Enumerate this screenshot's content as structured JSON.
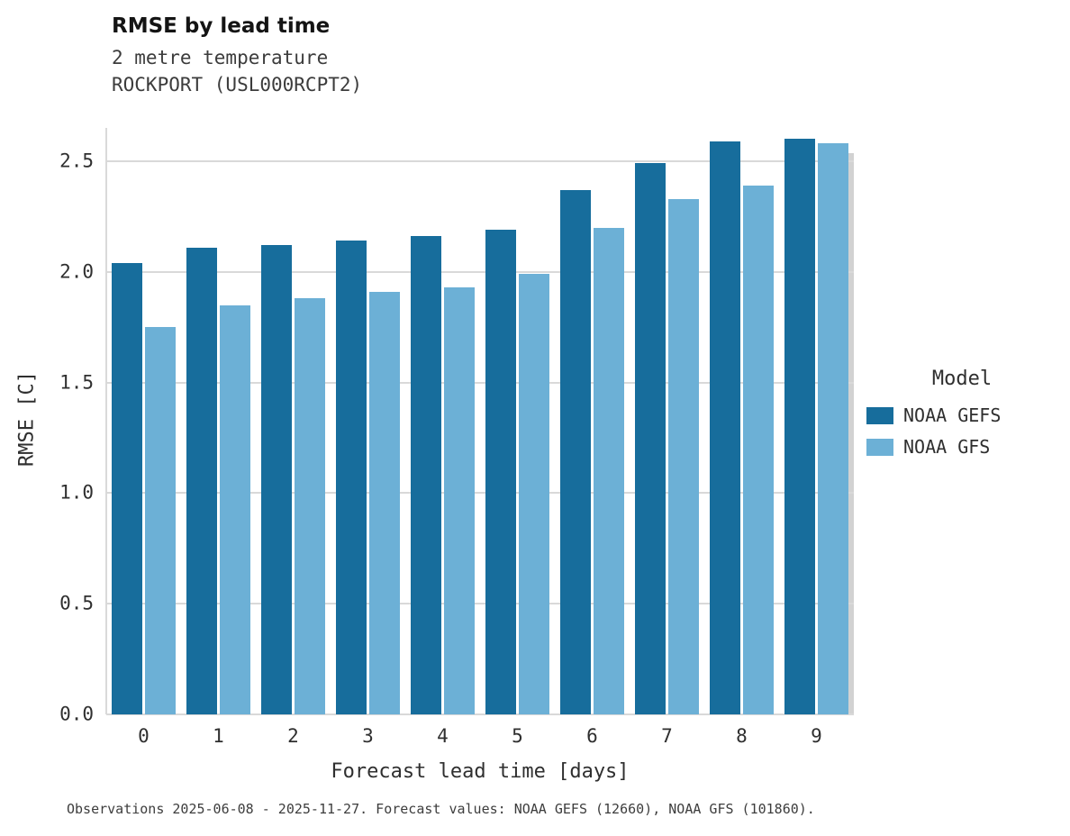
{
  "header": {
    "title": "RMSE by lead time",
    "subtitle_line1": "2 metre temperature",
    "subtitle_line2": "ROCKPORT (USL000RCPT2)"
  },
  "chart_data": {
    "type": "bar",
    "title": "RMSE by lead time",
    "subtitle": "2 metre temperature / ROCKPORT (USL000RCPT2)",
    "categories": [
      "0",
      "1",
      "2",
      "3",
      "4",
      "5",
      "6",
      "7",
      "8",
      "9"
    ],
    "series": [
      {
        "name": "NOAA GEFS",
        "color": "#176d9c",
        "values": [
          2.04,
          2.11,
          2.12,
          2.14,
          2.16,
          2.19,
          2.37,
          2.49,
          2.59,
          2.6
        ]
      },
      {
        "name": "NOAA GFS",
        "color": "#6cb0d6",
        "values": [
          1.75,
          1.85,
          1.88,
          1.91,
          1.93,
          1.99,
          2.2,
          2.33,
          2.39,
          2.58
        ]
      }
    ],
    "xlabel": "Forecast lead time [days]",
    "ylabel": "RMSE [C]",
    "ylim": [
      0,
      2.65
    ],
    "yticks": [
      0.0,
      0.5,
      1.0,
      1.5,
      2.0,
      2.5
    ],
    "grid": "horizontal",
    "grid_color": "#d9d9d9",
    "legend_title": "Model",
    "legend_position": "right"
  },
  "footer": {
    "note": "Observations 2025-06-08 - 2025-11-27. Forecast values: NOAA GEFS (12660), NOAA GFS (101860)."
  }
}
